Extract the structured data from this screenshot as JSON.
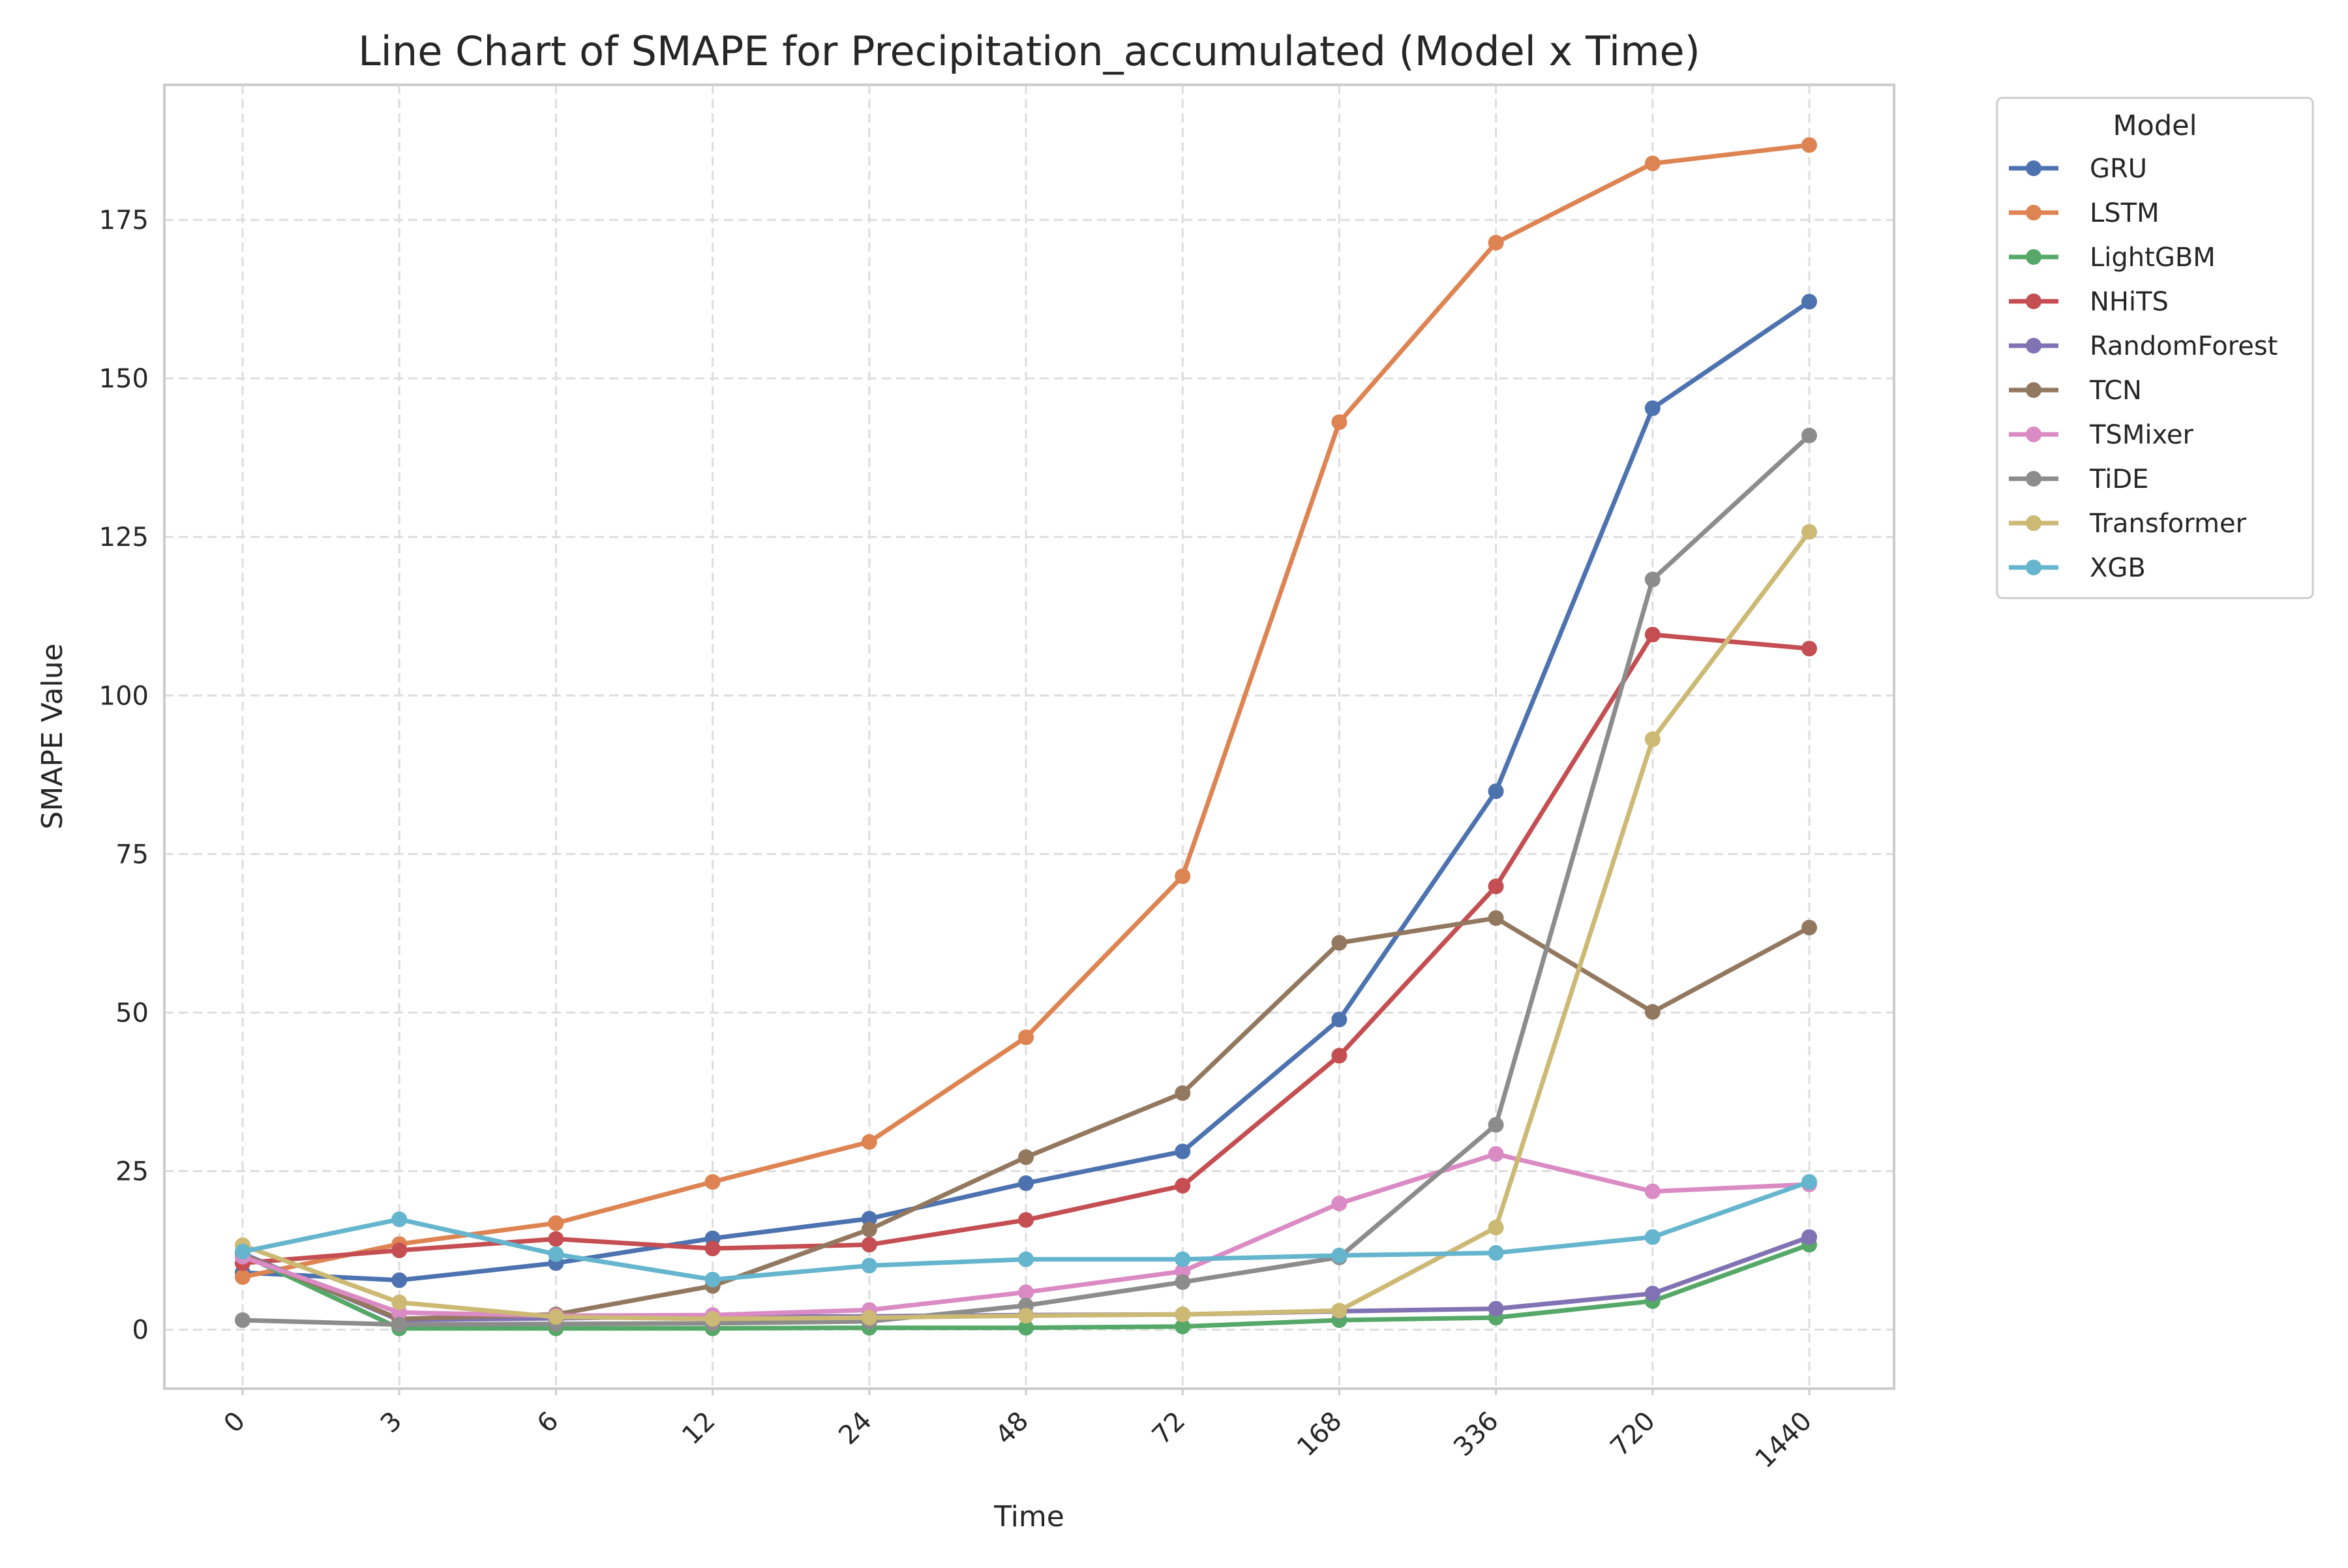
{
  "chart_data": {
    "type": "line",
    "title": "Line Chart of SMAPE for Precipitation_accumulated (Model x Time)",
    "xlabel": "Time",
    "ylabel": "SMAPE Value",
    "x": [
      "0",
      "3",
      "6",
      "12",
      "24",
      "48",
      "72",
      "168",
      "336",
      "720",
      "1440"
    ],
    "ylim": [
      -9.3,
      196.3
    ],
    "yticks": [
      0,
      25,
      50,
      75,
      100,
      125,
      150,
      175
    ],
    "grid": true,
    "legend": {
      "title": "Model",
      "placement": "outside-top-right"
    },
    "series": [
      {
        "name": "GRU",
        "color": "#4c72b0",
        "values": [
          9,
          7.8,
          10.5,
          14.4,
          17.5,
          23.1,
          28.1,
          48.9,
          84.9,
          145.3,
          162.1
        ]
      },
      {
        "name": "LSTM",
        "color": "#dd8452",
        "values": [
          8.3,
          13.5,
          16.8,
          23.3,
          29.6,
          46.1,
          71.5,
          143.1,
          171.4,
          183.9,
          186.8
        ]
      },
      {
        "name": "LightGBM",
        "color": "#55a868",
        "values": [
          11.8,
          0.2,
          0.2,
          0.2,
          0.3,
          0.3,
          0.5,
          1.5,
          1.9,
          4.5,
          13.4
        ]
      },
      {
        "name": "NHiTS",
        "color": "#c44e52",
        "values": [
          10.5,
          12.5,
          14.3,
          12.8,
          13.4,
          17.3,
          22.7,
          43.2,
          69.9,
          109.6,
          107.4
        ]
      },
      {
        "name": "RandomForest",
        "color": "#8172b3",
        "values": [
          12,
          1.5,
          1.8,
          2.1,
          2.1,
          2.3,
          2.4,
          2.9,
          3.3,
          5.7,
          14.6
        ]
      },
      {
        "name": "TCN",
        "color": "#937860",
        "values": [
          11.8,
          1.7,
          2.4,
          6.9,
          15.8,
          27.2,
          37.3,
          61,
          64.9,
          50.1,
          63.4
        ]
      },
      {
        "name": "TSMixer",
        "color": "#da8bc3",
        "values": [
          11.5,
          2.7,
          2.2,
          2.3,
          3.1,
          5.9,
          9.2,
          19.9,
          27.7,
          21.8,
          22.9
        ]
      },
      {
        "name": "TiDE",
        "color": "#8c8c8c",
        "values": [
          1.5,
          0.8,
          0.9,
          1,
          1.3,
          3.8,
          7.5,
          11.4,
          32.3,
          118.3,
          141
        ]
      },
      {
        "name": "Transformer",
        "color": "#ccb974",
        "values": [
          13.3,
          4.3,
          2,
          1.7,
          1.9,
          2.2,
          2.4,
          3,
          16.1,
          93.1,
          125.8
        ]
      },
      {
        "name": "XGB",
        "color": "#64b5cd",
        "values": [
          12.3,
          17.4,
          11.9,
          7.9,
          10.1,
          11.1,
          11.1,
          11.7,
          12.1,
          14.6,
          23.3
        ]
      }
    ]
  }
}
